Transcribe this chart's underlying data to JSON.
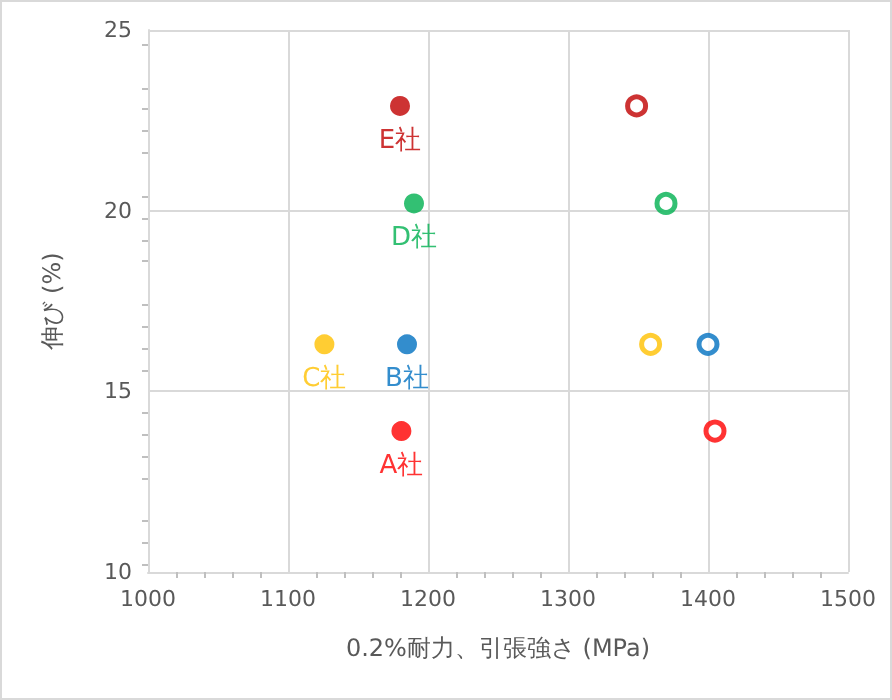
{
  "chart_data": {
    "type": "scatter",
    "xlabel": "0.2%耐力、引張強さ (MPa)",
    "ylabel": "伸び (%)",
    "xlim": [
      1000,
      1500
    ],
    "xticks": [
      1000,
      1100,
      1200,
      1300,
      1400,
      1500
    ],
    "ylim": [
      10,
      25
    ],
    "yticks": [
      10,
      15,
      20,
      25
    ],
    "grid": true,
    "legend": false,
    "marker": "circle",
    "series": [
      {
        "name": "A社",
        "color": "#ff0000",
        "x": [
          1181,
          1405
        ],
        "values": [
          13.9,
          13.9
        ]
      },
      {
        "name": "B社",
        "color": "#0070c0",
        "x": [
          1185,
          1400
        ],
        "values": [
          16.3,
          16.3
        ]
      },
      {
        "name": "C社",
        "color": "#ffc000",
        "x": [
          1126,
          1359
        ],
        "values": [
          16.3,
          16.3
        ]
      },
      {
        "name": "D社",
        "color": "#00b050",
        "x": [
          1190,
          1370
        ],
        "values": [
          20.2,
          20.2
        ]
      },
      {
        "name": "E社",
        "color": "#c00000",
        "x": [
          1180,
          1349
        ],
        "values": [
          22.9,
          22.9
        ]
      }
    ]
  }
}
